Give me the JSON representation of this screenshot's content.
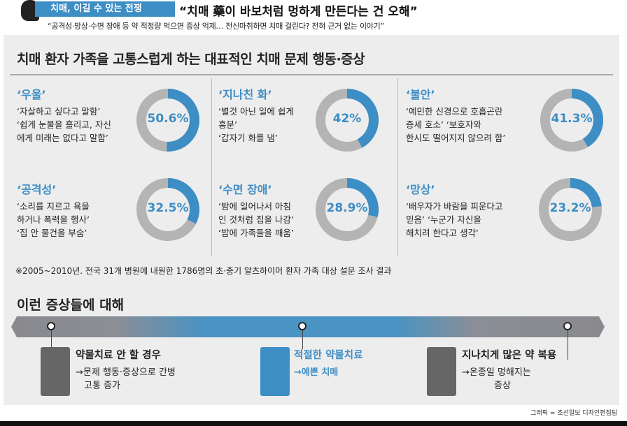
{
  "header": {
    "series_label": "치매, 이길 수 있는 전쟁",
    "headline": "“치매 藥이 바보처럼 멍하게 만든다는 건 오해”",
    "subheadline": "“공격성·망상·수면 장애 등   약 적정량 먹으면 증상 억제…   전신마취하면 치매 걸린다?   전혀 근거 없는 이야기”"
  },
  "main": {
    "title": "치매 환자 가족을 고통스럽게 하는 대표적인 치매 문제 행동·증상",
    "symptoms": [
      {
        "name": "‘우울’",
        "desc": [
          "‘자살하고 싶다고 말함’",
          "‘쉽게 눈물을 흘리고, 자신",
          "에게 미래는 없다고 말함’"
        ],
        "label": "50.6%",
        "value": 50.6
      },
      {
        "name": "‘지나친 화’",
        "desc": [
          "‘별것 아닌 일에 쉽게",
          "흥분’",
          "‘갑자기 화를 냄’"
        ],
        "label": "42%",
        "value": 42
      },
      {
        "name": "‘불안’",
        "desc": [
          "‘예민한 신경으로 호흡곤란",
          "증세 호소’ ‘보호자와",
          "한시도 떨어지지 않으려 함’"
        ],
        "label": "41.3%",
        "value": 41.3
      },
      {
        "name": "‘공격성’",
        "desc": [
          "‘소리를 지르고 욕을",
          "하거나 폭력을 행사’",
          "‘집 안 물건을 부숨’"
        ],
        "label": "32.5%",
        "value": 32.5
      },
      {
        "name": "‘수면 장애’",
        "desc": [
          "‘밤에 일어나서 아침",
          "인 것처럼 집을 나감’",
          "‘밤에 가족들을 깨움’"
        ],
        "label": "28.9%",
        "value": 28.9
      },
      {
        "name": "‘망상’",
        "desc": [
          "‘배우자가 바람을 피운다고",
          "믿음’ ‘누군가 자신을",
          "해치려 한다고 생각’"
        ],
        "label": "23.2%",
        "value": 23.2
      }
    ],
    "note": "※2005~2010년. 전국 31개 병원에 내원한 1786명의 초·중기 알츠하이머 환자 가족 대상 설문 조사 결과"
  },
  "treatment": {
    "title": "이런 증상들에 대해",
    "items": [
      {
        "title": "약물치료 안 할 경우",
        "desc": [
          "→문제 행동·증상으로 간병",
          "고통 증가"
        ]
      },
      {
        "title": "적절한 약물치료",
        "desc": [
          "→예쁜 치매"
        ]
      },
      {
        "title": "지나치게 많은 약 복용",
        "desc": [
          "→온종일 멍해지는",
          "증상"
        ]
      }
    ]
  },
  "credit": "그래픽 = 조선일보 디자인편집팀",
  "colors": {
    "accent": "#3d8ec4",
    "gray": "#b4b4b4",
    "panel": "#ededee"
  }
}
